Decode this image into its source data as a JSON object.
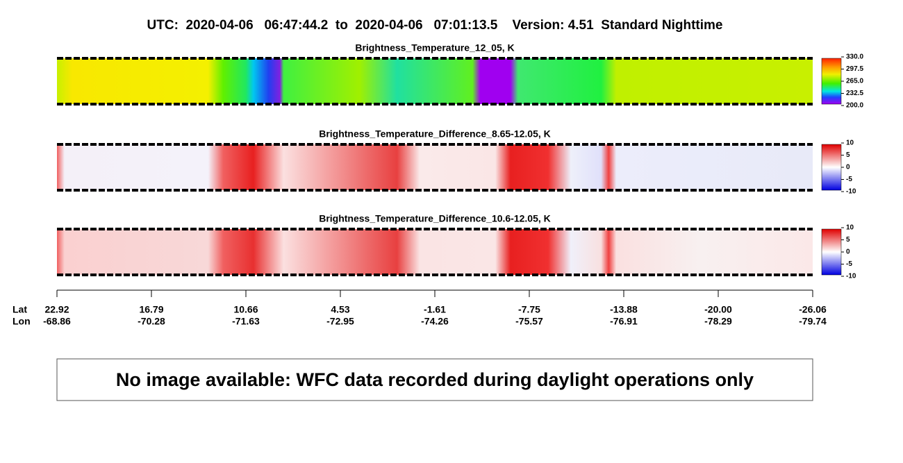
{
  "header": {
    "title": "UTC:  2020-04-06   06:47:44.2  to  2020-04-06   07:01:13.5    Version: 4.51  Standard Nighttime"
  },
  "panels": [
    {
      "title": "Brightness_Temperature_12_05, K",
      "colorbar": [
        "330.0",
        "297.5",
        "265.0",
        "232.5",
        "200.0"
      ]
    },
    {
      "title": "Brightness_Temperature_Difference_8.65-12.05, K",
      "colorbar": [
        "10",
        "5",
        "0",
        "-5",
        "-10"
      ]
    },
    {
      "title": "Brightness_Temperature_Difference_10.6-12.05, K",
      "colorbar": [
        "10",
        "5",
        "0",
        "-5",
        "-10"
      ]
    }
  ],
  "axis": {
    "lat_label": "Lat",
    "lon_label": "Lon",
    "lat": [
      "22.92",
      "16.79",
      "10.66",
      "4.53",
      "-1.61",
      "-7.75",
      "-13.88",
      "-20.00",
      "-26.06"
    ],
    "lon": [
      "-68.86",
      "-70.28",
      "-71.63",
      "-72.95",
      "-74.26",
      "-75.57",
      "-76.91",
      "-78.29",
      "-79.74"
    ]
  },
  "message": "No image available: WFC data recorded during daylight operations only"
}
